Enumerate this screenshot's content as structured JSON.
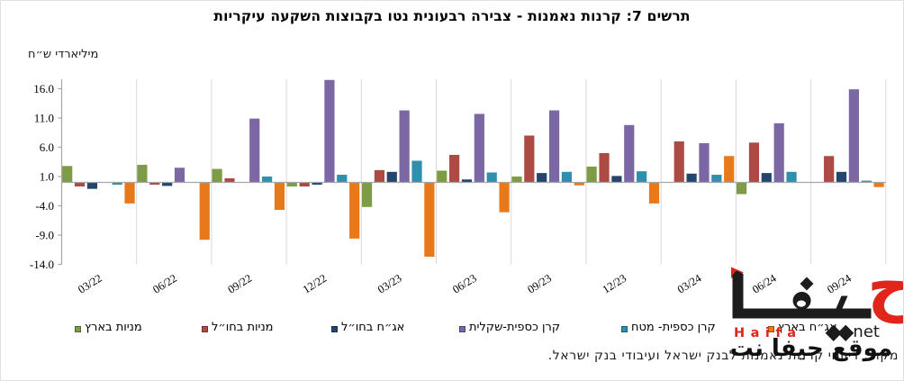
{
  "title": "תרשים 7: קרנות נאמנות - צבירה רבעונית נטו בקבוצות השקעה עיקריות",
  "y_axis": {
    "label": "מיליארדי ש״ח",
    "tick_labels": [
      "16.0",
      "11.0",
      "6.0",
      "1.0",
      "-4.0",
      "-9.0",
      "-14.0"
    ]
  },
  "chart_data": {
    "type": "bar",
    "title": "תרשים 7: קרנות נאמנות - צבירה רבעונית נטו בקבוצות השקעה עיקריות",
    "ylabel": "מיליארדי ש״ח",
    "categories": [
      "03/22",
      "06/22",
      "09/22",
      "12/22",
      "03/23",
      "06/23",
      "09/23",
      "12/23",
      "03/24",
      "06/24",
      "09/24"
    ],
    "series": [
      {
        "name": "מניות בארץ",
        "color": "#7e9b45",
        "values": [
          2.8,
          3.0,
          2.3,
          -0.7,
          -4.2,
          2.0,
          1.0,
          2.7,
          0.0,
          -2.0,
          0.0
        ]
      },
      {
        "name": "מניות בחו״ל",
        "color": "#ae4a44",
        "values": [
          -0.7,
          -0.4,
          0.7,
          -0.7,
          2.1,
          4.7,
          8.0,
          5.0,
          7.0,
          6.8,
          4.5
        ]
      },
      {
        "name": "אג״ח בחו״ל",
        "color": "#24466d",
        "values": [
          -1.1,
          -0.6,
          0.0,
          -0.4,
          1.8,
          0.5,
          1.6,
          1.1,
          1.5,
          1.6,
          1.8
        ]
      },
      {
        "name": "קרן כספית-שקלית",
        "color": "#7a67a4",
        "values": [
          0.0,
          2.5,
          10.9,
          17.5,
          12.3,
          11.7,
          12.3,
          9.8,
          6.7,
          10.1,
          15.9
        ]
      },
      {
        "name": "קרן כספית- מטח",
        "color": "#2f8fac",
        "values": [
          -0.4,
          0.0,
          1.0,
          1.3,
          3.7,
          1.7,
          1.8,
          1.9,
          1.3,
          1.8,
          0.3
        ]
      },
      {
        "name": "אג״ח בארץ",
        "color": "#e8791a",
        "values": [
          -3.6,
          -9.8,
          -4.7,
          -9.6,
          -12.7,
          -5.1,
          -0.5,
          -3.6,
          4.5,
          0.0,
          -0.8
        ]
      }
    ],
    "ylim": [
      -14.0,
      17.6
    ],
    "y_ticks": [
      16.0,
      11.0,
      6.0,
      1.0,
      -4.0,
      -9.0,
      -14.0
    ],
    "grid": "vertical-category-separators",
    "legend_position": "bottom"
  },
  "source_note": "מקור: דיווחי קרנות נאמנות לבנק ישראל ועיבודי בנק ישראל.",
  "watermark": {
    "logo_text": "حيفا",
    "logo_first_letter": "ح",
    "latin_name": "Haifa",
    "diamonds": "◆◆",
    "suffix": "net",
    "arabic_line": "موقع حيفا نت"
  }
}
